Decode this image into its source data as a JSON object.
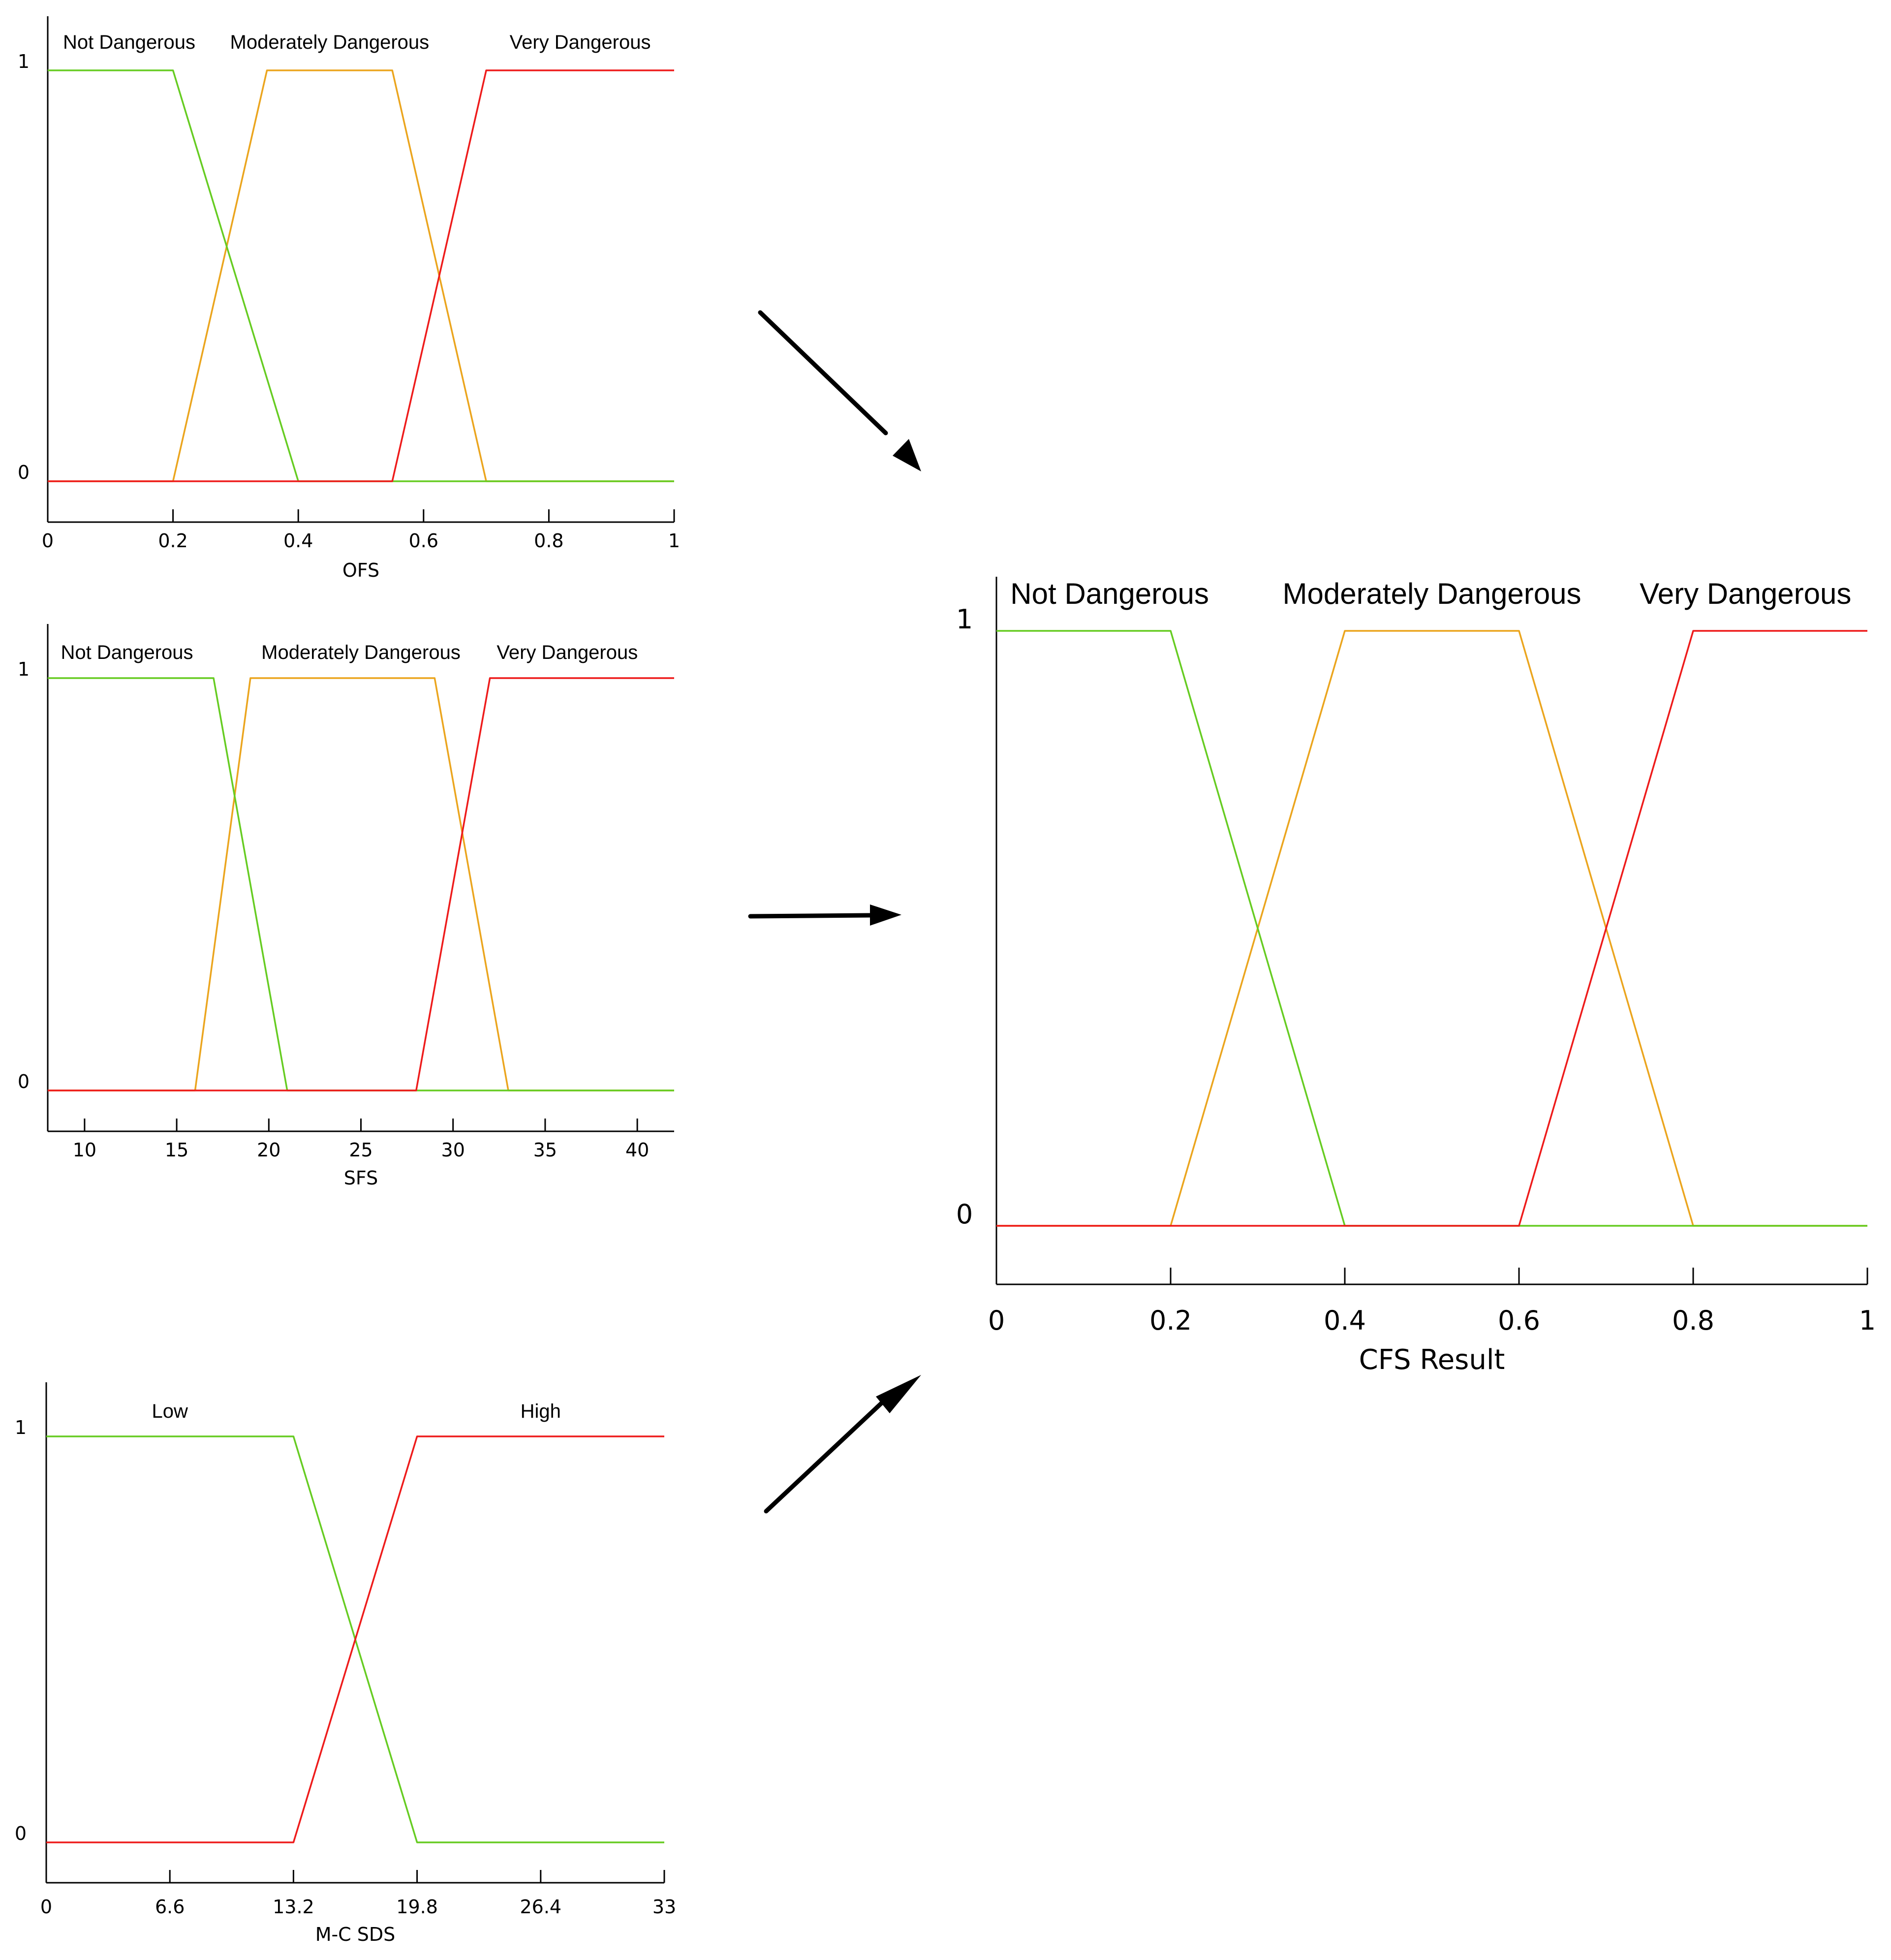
{
  "colors": {
    "green": "#66cc22",
    "orange": "#eba51e",
    "red": "#ee1b1b",
    "axis": "#000000",
    "arrow": "#000000"
  },
  "chart_data": [
    {
      "id": "ofs",
      "type": "line",
      "title": "",
      "xlabel": "OFS",
      "ylabel": "",
      "xlim": [
        0,
        1
      ],
      "ylim": [
        0,
        1
      ],
      "xticks": [
        0,
        0.2,
        0.4,
        0.6,
        0.8,
        1
      ],
      "xtick_labels": [
        "0",
        "0.2",
        "0.4",
        "0.6",
        "0.8",
        "1"
      ],
      "yticks": [
        0,
        1
      ],
      "ytick_labels": [
        "0",
        "1"
      ],
      "series": [
        {
          "name": "Not Dangerous",
          "color": "green",
          "label_at": 0.13,
          "x": [
            0,
            0.2,
            0.4,
            1
          ],
          "y": [
            1,
            1,
            0,
            0
          ]
        },
        {
          "name": "Moderately Dangerous",
          "color": "orange",
          "label_at": 0.45,
          "x": [
            0,
            0.2,
            0.35,
            0.55,
            0.7,
            1
          ],
          "y": [
            0,
            0,
            1,
            1,
            0,
            0
          ]
        },
        {
          "name": "Very Dangerous",
          "color": "red",
          "label_at": 0.85,
          "x": [
            0,
            0.55,
            0.7,
            1
          ],
          "y": [
            0,
            0,
            1,
            1
          ]
        }
      ]
    },
    {
      "id": "sfs",
      "type": "line",
      "title": "",
      "xlabel": "SFS",
      "ylabel": "",
      "xlim": [
        8,
        42
      ],
      "ylim": [
        0,
        1
      ],
      "xticks": [
        10,
        15,
        20,
        25,
        30,
        35,
        40
      ],
      "xtick_labels": [
        "10",
        "15",
        "20",
        "25",
        "30",
        "35",
        "40"
      ],
      "yticks": [
        0,
        1
      ],
      "ytick_labels": [
        "0",
        "1"
      ],
      "series": [
        {
          "name": "Not Dangerous",
          "color": "green",
          "label_at": 12.3,
          "x": [
            8,
            17,
            21,
            42
          ],
          "y": [
            1,
            1,
            0,
            0
          ]
        },
        {
          "name": "Moderately Dangerous",
          "color": "orange",
          "label_at": 25,
          "x": [
            8,
            16,
            19,
            29,
            33,
            42
          ],
          "y": [
            0,
            0,
            1,
            1,
            0,
            0
          ]
        },
        {
          "name": "Very Dangerous",
          "color": "red",
          "label_at": 36.2,
          "x": [
            8,
            28,
            32,
            42
          ],
          "y": [
            0,
            0,
            1,
            1
          ]
        }
      ]
    },
    {
      "id": "mcsds",
      "type": "line",
      "title": "",
      "xlabel": "M-C SDS",
      "ylabel": "",
      "xlim": [
        0,
        33
      ],
      "ylim": [
        0,
        1
      ],
      "xticks": [
        0,
        6.6,
        13.2,
        19.8,
        26.4,
        33
      ],
      "xtick_labels": [
        "0",
        "6.6",
        "13.2",
        "19.8",
        "26.4",
        "33"
      ],
      "yticks": [
        0,
        1
      ],
      "ytick_labels": [
        "0",
        "1"
      ],
      "series": [
        {
          "name": "Low",
          "color": "green",
          "label_at": 6.6,
          "x": [
            0,
            13.2,
            19.8,
            33
          ],
          "y": [
            1,
            1,
            0,
            0
          ]
        },
        {
          "name": "High",
          "color": "red",
          "label_at": 26.4,
          "x": [
            0,
            13.2,
            19.8,
            33
          ],
          "y": [
            0,
            0,
            1,
            1
          ]
        }
      ]
    },
    {
      "id": "cfs",
      "type": "line",
      "title": "",
      "xlabel": "CFS Result",
      "ylabel": "",
      "xlim": [
        0,
        1
      ],
      "ylim": [
        0,
        1
      ],
      "xticks": [
        0,
        0.2,
        0.4,
        0.6,
        0.8,
        1
      ],
      "xtick_labels": [
        "0",
        "0.2",
        "0.4",
        "0.6",
        "0.8",
        "1"
      ],
      "yticks": [
        0,
        1
      ],
      "ytick_labels": [
        "0",
        "1"
      ],
      "series": [
        {
          "name": "Not Dangerous",
          "color": "green",
          "label_at": 0.13,
          "x": [
            0,
            0.2,
            0.4,
            1
          ],
          "y": [
            1,
            1,
            0,
            0
          ]
        },
        {
          "name": "Moderately Dangerous",
          "color": "orange",
          "label_at": 0.5,
          "x": [
            0,
            0.2,
            0.4,
            0.6,
            0.8,
            1
          ],
          "y": [
            0,
            0,
            1,
            1,
            0,
            0
          ]
        },
        {
          "name": "Very Dangerous",
          "color": "red",
          "label_at": 0.86,
          "x": [
            0,
            0.6,
            0.8,
            1
          ],
          "y": [
            0,
            0,
            1,
            1
          ]
        }
      ]
    }
  ]
}
